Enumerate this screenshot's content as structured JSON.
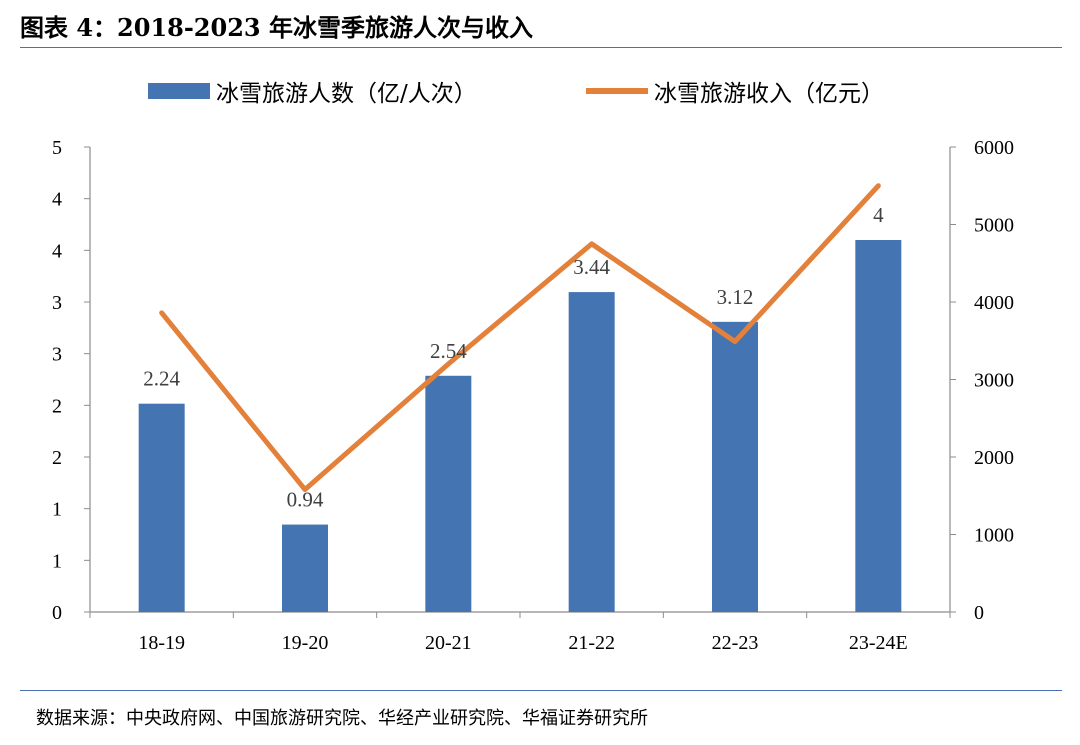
{
  "title": "图表 4：2018-2023 年冰雪季旅游人次与收入",
  "source": "数据来源：中央政府网、中国旅游研究院、华经产业研究院、华福证券研究所",
  "colors": {
    "bar": "#4574b2",
    "line": "#e3803a",
    "rule": "#4a6fb5",
    "axis": "#8c8c8c"
  },
  "chart_data": {
    "type": "bar+line",
    "categories": [
      "18-19",
      "19-20",
      "20-21",
      "21-22",
      "22-23",
      "23-24E"
    ],
    "series": [
      {
        "name": "冰雪旅游人数（亿/人次）",
        "type": "bar",
        "axis": "left",
        "values": [
          2.24,
          0.94,
          2.54,
          3.44,
          3.12,
          4
        ],
        "data_labels": [
          "2.24",
          "0.94",
          "2.54",
          "3.44",
          "3.12",
          "4"
        ]
      },
      {
        "name": "冰雪旅游收入（亿元）",
        "type": "line",
        "axis": "right",
        "values": [
          3860,
          1580,
          3200,
          4750,
          3490,
          5500
        ]
      }
    ],
    "left_axis": {
      "ylim": [
        0,
        5
      ],
      "tick_labels": [
        "0",
        "1",
        "1",
        "2",
        "2",
        "3",
        "3",
        "4",
        "4",
        "5"
      ]
    },
    "right_axis": {
      "ylim": [
        0,
        6000
      ],
      "tick_labels": [
        "0",
        "1000",
        "2000",
        "3000",
        "4000",
        "5000",
        "6000"
      ]
    },
    "legend_position": "top",
    "grid": false
  }
}
